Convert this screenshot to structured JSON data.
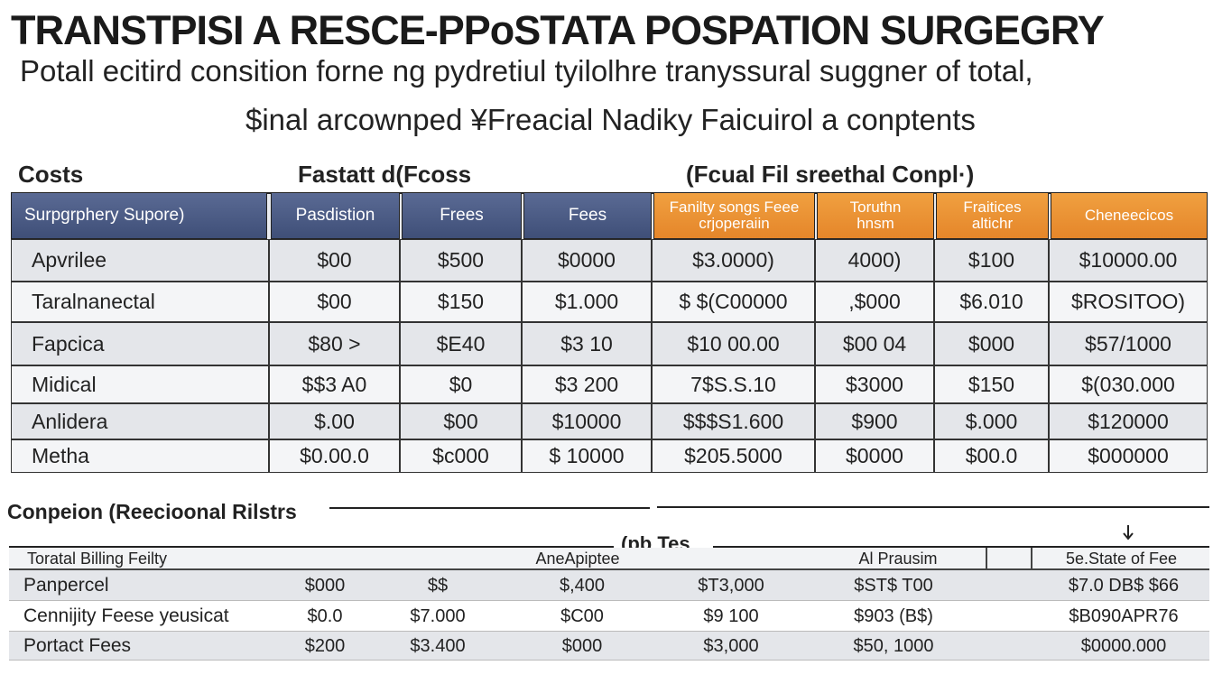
{
  "title": "TRANSTPISI A RESCE-PPoSTATA POSPATION SURGEGRY",
  "subtitle": [
    "Potall ecitird consition forne ng pydretiul tyilolhre tranyssural suggner of total,",
    "$inal arcownped ¥Freacial Nadiky Faicuirol a conptents"
  ],
  "section_labels": [
    "Costs",
    "Fastatt d(Fcoss",
    "(Fcual Fil sreethal Conpl·)"
  ],
  "table1": {
    "header": [
      "Surpgrphery Supore)",
      "Pasdistion",
      "Frees",
      "Fees",
      "Fanilty songs Feee\ncrjoperaiin",
      "Toruthn\nhnsm",
      "Fraitices\naltichr",
      "Cheneecicos"
    ],
    "rows": [
      [
        "Apvrilee",
        "$00",
        "$500",
        "$0000",
        "$3.0000)",
        "4000)",
        "$100",
        "$10000.00"
      ],
      [
        "Taralnanectal",
        "$00",
        "$150",
        "$1.000",
        "$ $(C00000",
        ",$000",
        "$6.010",
        "$ROSITOO)"
      ],
      [
        "Fapcica",
        "$80 >",
        "$E40",
        "$3 10",
        "$10 00.00",
        "$00 04",
        "$000",
        "$57/1000"
      ],
      [
        "Midical",
        "$$3 A0",
        "$0",
        "$3 200",
        "7$S.S.10",
        "$3000",
        "$150",
        "$(030.000"
      ],
      [
        "Anlidera",
        "$.00",
        "$00",
        "$10000",
        "$$$S1.600",
        "$900",
        "$.000",
        "$120000"
      ],
      [
        "Metha",
        "$0.00.0",
        "$c000",
        "$ 10000",
        "$205.5000",
        "$0000",
        "$00.0",
        "$000000"
      ]
    ]
  },
  "section2": {
    "title": "Conpeion (Reecioonal Rilstrs",
    "badge": "(pb Tes",
    "header": [
      "Toratal Billing Feilty",
      "AneApiptee",
      "Al Prausim",
      "5e.State of Fee"
    ],
    "rows": [
      [
        "Panpercel",
        "$000",
        "$$",
        "$,400",
        "$T3,000",
        "$ST$ T00",
        "$7.0 DB$ $66"
      ],
      [
        "Cennijity Feese yeusicat",
        "$0.0",
        "$7.000",
        "$C00",
        "$9 100",
        "$903 (B$)",
        "$B090APR76"
      ],
      [
        "Portact Fees",
        "$200",
        "$3.400",
        "$000",
        "$3,000",
        "$50, 1000",
        "$0000.000"
      ]
    ]
  }
}
